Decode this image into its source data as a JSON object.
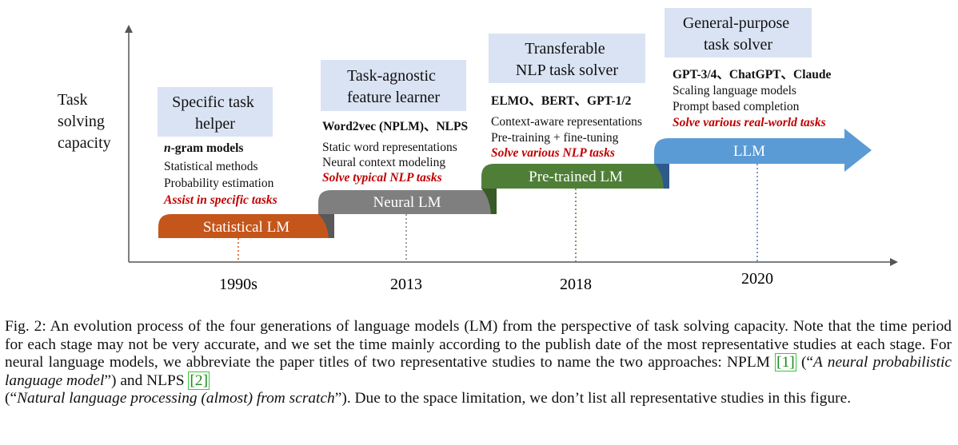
{
  "axis": {
    "y_label_lines": [
      "Task",
      "solving",
      "capacity"
    ],
    "x_ticks": [
      "1990s",
      "2013",
      "2018",
      "2020"
    ]
  },
  "stages": [
    {
      "label": "Statistical LM",
      "color": "#c5561b",
      "title_lines": [
        "Specific task",
        "helper"
      ],
      "bold_line": "n-gram models",
      "bold_italic_prefix": "n",
      "bold_rest": "-gram models",
      "lines": [
        "Statistical methods",
        "Probability estimation"
      ],
      "highlight": "Assist in specific tasks"
    },
    {
      "label": "Neural LM",
      "color": "#7f7f7f",
      "title_lines": [
        "Task-agnostic",
        "feature learner"
      ],
      "bold_line": "Word2vec (NPLM)、NLPS",
      "lines": [
        "Static word representations",
        "Neural context modeling"
      ],
      "highlight": "Solve typical NLP tasks"
    },
    {
      "label": "Pre-trained LM",
      "color": "#4f7f37",
      "title_lines": [
        "Transferable",
        "NLP task solver"
      ],
      "bold_line": "ELMO、BERT、GPT-1/2",
      "lines": [
        "Context-aware representations",
        "Pre-training + fine-tuning"
      ],
      "highlight": "Solve various NLP tasks"
    },
    {
      "label": "LLM",
      "color": "#5b9bd5",
      "title_lines": [
        "General-purpose",
        "task solver"
      ],
      "bold_line": "GPT-3/4、ChatGPT、Claude",
      "lines": [
        "Scaling language models",
        "Prompt based completion"
      ],
      "highlight": "Solve various real-world tasks"
    }
  ],
  "colors": {
    "title_box": "#dae3f3",
    "highlight": "#c00000",
    "axis": "#555555"
  },
  "caption": {
    "prefix": "Fig. 2: An evolution process of the four generations of language models (LM) from the perspective of task solving capacity. Note that the time period for each stage may not be very accurate, and we set the time mainly according to the publish date of the most representative studies at each stage. For neural language models, we abbreviate the paper titles of two representative studies to name the two approaches: NPLM ",
    "ref1": "1",
    "mid1": " (“",
    "title1": "A neural probabilistic language model",
    "mid2": "”) and NLPS ",
    "ref2": "2",
    "mid3": " (“",
    "title2": "Natural language processing (almost) from scratch",
    "suffix": "”). Due to the space limitation, we don’t list all representative studies in this figure."
  }
}
